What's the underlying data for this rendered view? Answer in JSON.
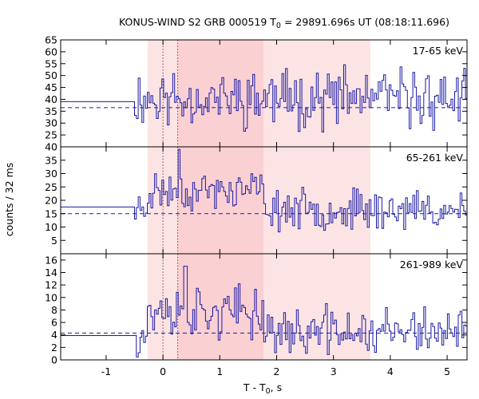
{
  "title": {
    "prefix": "KONUS-WIND S2 GRB 000519 T",
    "sub": "0",
    "suffix": " = 29891.696s UT (08:18:11.696)"
  },
  "xlabel": {
    "prefix": "T - T",
    "sub": "0",
    "suffix": ", s"
  },
  "ylabel": "counts / 32 ms",
  "colors": {
    "histogram": "#1a1aa6",
    "background_dashed": "#1a1aa6",
    "shade_light": "#fde4e4",
    "shade_dark": "#fbd0d2",
    "dotted_lines": "#8b1a1a",
    "axes": "#000000"
  },
  "chart_data": {
    "type": "line",
    "subtype": "step-histogram light curves",
    "bin_s": 0.032,
    "x_range": [
      -1.8,
      5.35
    ],
    "x_ticks": [
      -1,
      0,
      1,
      2,
      3,
      4,
      5
    ],
    "x_tick_labels": [
      "-1",
      "0",
      "1",
      "2",
      "3",
      "4",
      "5"
    ],
    "shaded_regions": [
      {
        "from": -0.27,
        "to": 3.65,
        "shade": "light"
      },
      {
        "from": 0.26,
        "to": 1.77,
        "shade": "dark"
      }
    ],
    "vertical_dotted_lines": [
      0.0,
      0.26
    ],
    "panels": [
      {
        "label": "17-65 keV",
        "ylim": [
          20,
          65
        ],
        "y_ticks": [
          20,
          25,
          30,
          35,
          40,
          45,
          50,
          55,
          60,
          65
        ],
        "y_tick_labels": [
          "20",
          "25",
          "30",
          "35",
          "40",
          "45",
          "50",
          "55",
          "60",
          "65"
        ],
        "background_level": 36.5,
        "pre_burst_level": 39,
        "onset": -0.5,
        "signal": {
          "mean": 40.5,
          "amplitude": 7.5,
          "seed": 11
        }
      },
      {
        "label": "65-261 keV",
        "ylim": [
          0,
          40
        ],
        "y_ticks": [
          0,
          5,
          10,
          15,
          20,
          25,
          30,
          35,
          40
        ],
        "y_tick_labels": [
          "0",
          "5",
          "10",
          "15",
          "20",
          "25",
          "30",
          "35",
          "40"
        ],
        "background_level": 15,
        "pre_burst_level": 17.5,
        "onset": -0.5,
        "signal": {
          "mean": 16.5,
          "amplitude": 4.5,
          "peak_time": 0.26,
          "peak_value": 39,
          "burst_mean": 23.5,
          "seed": 23
        }
      },
      {
        "label": "261-989 keV",
        "ylim": [
          0,
          17
        ],
        "y_ticks": [
          0,
          2,
          4,
          6,
          8,
          10,
          12,
          14,
          16
        ],
        "y_tick_labels": [
          "0",
          "2",
          "4",
          "6",
          "8",
          "10",
          "12",
          "14",
          "16"
        ],
        "background_level": 4.3,
        "pre_burst_level": 3.9,
        "onset": -0.5,
        "signal": {
          "mean": 4.5,
          "amplitude": 2.5,
          "peak_time": 0.38,
          "peak_value": 15,
          "burst_mean": 7.5,
          "seed": 37
        }
      }
    ]
  }
}
